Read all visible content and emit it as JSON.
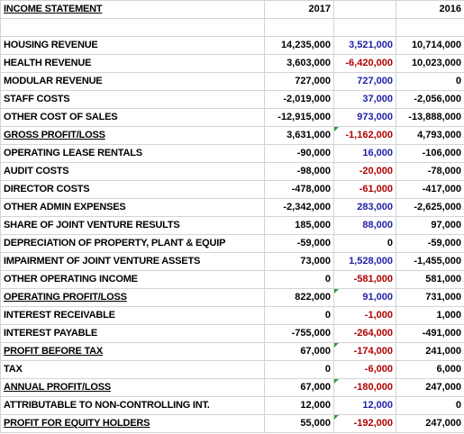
{
  "header": {
    "title": "INCOME STATEMENT",
    "year_a": "2017",
    "year_b": "2016"
  },
  "rows": [
    {
      "label": "HOUSING REVENUE",
      "v2017": "14,235,000",
      "diff": "3,521,000",
      "diff_color": "blue",
      "v2016": "10,714,000",
      "flag": false
    },
    {
      "label": "HEALTH REVENUE",
      "v2017": "3,603,000",
      "diff": "-6,420,000",
      "diff_color": "red",
      "v2016": "10,023,000",
      "flag": false
    },
    {
      "label": "MODULAR REVENUE",
      "v2017": "727,000",
      "diff": "727,000",
      "diff_color": "blue",
      "v2016": "0",
      "flag": false
    },
    {
      "label": "STAFF COSTS",
      "v2017": "-2,019,000",
      "diff": "37,000",
      "diff_color": "blue",
      "v2016": "-2,056,000",
      "flag": false
    },
    {
      "label": "OTHER COST OF SALES",
      "v2017": "-12,915,000",
      "diff": "973,000",
      "diff_color": "blue",
      "v2016": "-13,888,000",
      "flag": false
    },
    {
      "label": "GROSS PROFIT/LOSS",
      "v2017": "3,631,000",
      "diff": "-1,162,000",
      "diff_color": "red",
      "v2016": "4,793,000",
      "flag": true
    },
    {
      "label": "OPERATING LEASE RENTALS",
      "v2017": "-90,000",
      "diff": "16,000",
      "diff_color": "blue",
      "v2016": "-106,000",
      "flag": false
    },
    {
      "label": "AUDIT COSTS",
      "v2017": "-98,000",
      "diff": "-20,000",
      "diff_color": "red",
      "v2016": "-78,000",
      "flag": false
    },
    {
      "label": "DIRECTOR COSTS",
      "v2017": "-478,000",
      "diff": "-61,000",
      "diff_color": "red",
      "v2016": "-417,000",
      "flag": false
    },
    {
      "label": "OTHER ADMIN EXPENSES",
      "v2017": "-2,342,000",
      "diff": "283,000",
      "diff_color": "blue",
      "v2016": "-2,625,000",
      "flag": false
    },
    {
      "label": "SHARE OF JOINT VENTURE RESULTS",
      "v2017": "185,000",
      "diff": "88,000",
      "diff_color": "blue",
      "v2016": "97,000",
      "flag": false
    },
    {
      "label": "DEPRECIATION OF PROPERTY, PLANT & EQUIP",
      "v2017": "-59,000",
      "diff": "0",
      "diff_color": "black",
      "v2016": "-59,000",
      "flag": false
    },
    {
      "label": "IMPAIRMENT OF JOINT VENTURE ASSETS",
      "v2017": "73,000",
      "diff": "1,528,000",
      "diff_color": "blue",
      "v2016": "-1,455,000",
      "flag": false
    },
    {
      "label": "OTHER OPERATING INCOME",
      "v2017": "0",
      "diff": "-581,000",
      "diff_color": "red",
      "v2016": "581,000",
      "flag": false
    },
    {
      "label": "OPERATING PROFIT/LOSS",
      "v2017": "822,000",
      "diff": "91,000",
      "diff_color": "blue",
      "v2016": "731,000",
      "flag": true
    },
    {
      "label": "INTEREST RECEIVABLE",
      "v2017": "0",
      "diff": "-1,000",
      "diff_color": "red",
      "v2016": "1,000",
      "flag": false
    },
    {
      "label": "INTEREST PAYABLE",
      "v2017": "-755,000",
      "diff": "-264,000",
      "diff_color": "red",
      "v2016": "-491,000",
      "flag": false
    },
    {
      "label": "PROFIT BEFORE TAX",
      "v2017": "67,000",
      "diff": "-174,000",
      "diff_color": "red",
      "v2016": "241,000",
      "flag": true
    },
    {
      "label": "TAX",
      "v2017": "0",
      "diff": "-6,000",
      "diff_color": "red",
      "v2016": "6,000",
      "flag": false
    },
    {
      "label": "ANNUAL PROFIT/LOSS",
      "v2017": "67,000",
      "diff": "-180,000",
      "diff_color": "red",
      "v2016": "247,000",
      "flag": true
    },
    {
      "label": "ATTRIBUTABLE TO NON-CONTROLLING INT.",
      "v2017": "12,000",
      "diff": "12,000",
      "diff_color": "blue",
      "v2016": "0",
      "flag": false
    },
    {
      "label": "PROFIT FOR EQUITY HOLDERS",
      "v2017": "55,000",
      "diff": "-192,000",
      "diff_color": "red",
      "v2016": "247,000",
      "flag": true
    }
  ],
  "colors": {
    "blue": "#1f1fa8",
    "red": "#b00000",
    "black": "#000000",
    "gridline": "#d4d4d4",
    "flag": "#2e9e3a"
  }
}
